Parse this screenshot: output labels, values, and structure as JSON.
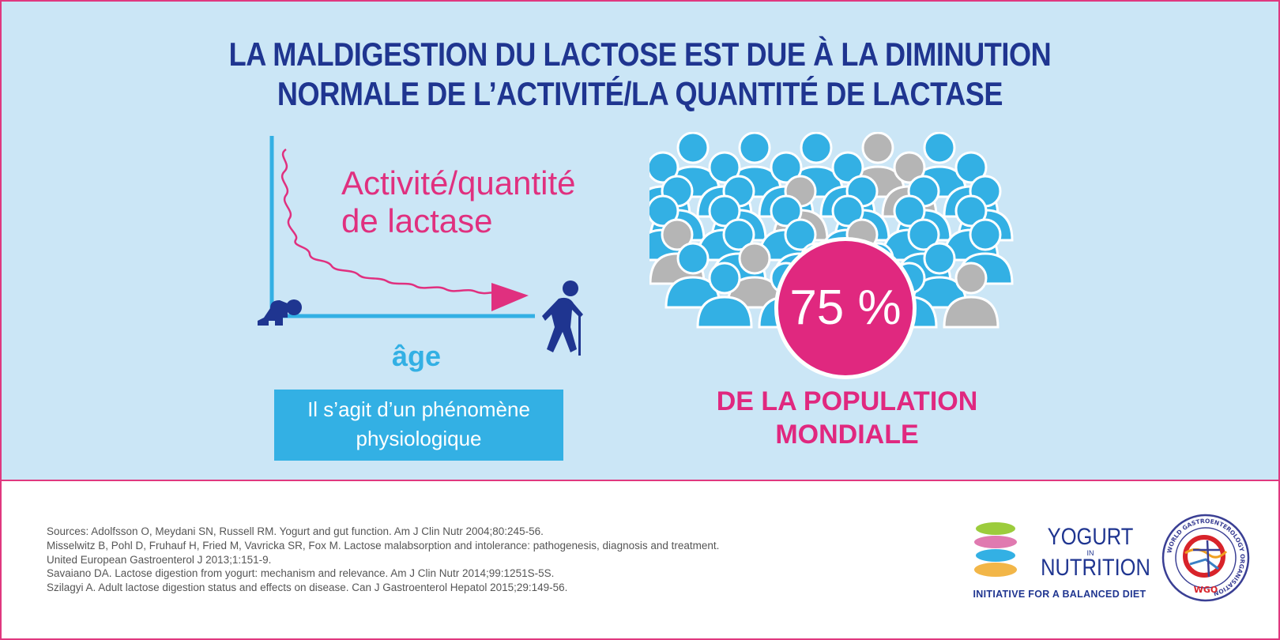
{
  "title": {
    "line1": "LA MALDIGESTION DU LACTOSE EST DUE À LA DIMINUTION",
    "line2": "NORMALE DE L’ACTIVITÉ/LA QUANTITÉ DE LACTASE"
  },
  "left_panel": {
    "curve_label_line1": "Activité/quantité",
    "curve_label_line2": "de lactase",
    "axis_label": "âge",
    "box_line1": "Il s’agit d’un phénomène",
    "box_line2": "physiologique"
  },
  "right_panel": {
    "percentage": "75 %",
    "caption_line1": "DE LA POPULATION",
    "caption_line2": "MONDIALE"
  },
  "sources": [
    "Sources: Adolfsson O, Meydani SN, Russell RM. Yogurt and gut function. Am J Clin Nutr 2004;80:245-56.",
    "Misselwitz B, Pohl D, Fruhauf H, Fried M, Vavricka SR, Fox M. Lactose malabsorption and intolerance: pathogenesis, diagnosis and treatment.",
    "United European Gastroenterol J 2013;1:151-9.",
    "Savaiano DA. Lactose digestion from yogurt: mechanism and relevance. Am J Clin Nutr 2014;99:1251S-5S.",
    "Szilagyi A. Adult lactose digestion status and effects on disease. Can J Gastroenterol Hepatol 2015;29:149-56."
  ],
  "logos": {
    "yogurt_word": "YOGURT",
    "in_word": "IN",
    "nutrition_word": "NUTRITION",
    "tagline": "INITIATIVE FOR A BALANCED DIET",
    "wgo_ring_text": "WORLD GASTROENTEROLOGY ORGANISATION",
    "wgo_short": "WGO"
  },
  "colors": {
    "background_top": "#cbe6f6",
    "title_blue": "#1f3590",
    "accent_pink": "#e0287f",
    "person_blue": "#33b0e4",
    "person_grey": "#b5b5b5"
  },
  "icons": [
    "baby-icon",
    "elderly-person-icon",
    "crowd-icon"
  ]
}
